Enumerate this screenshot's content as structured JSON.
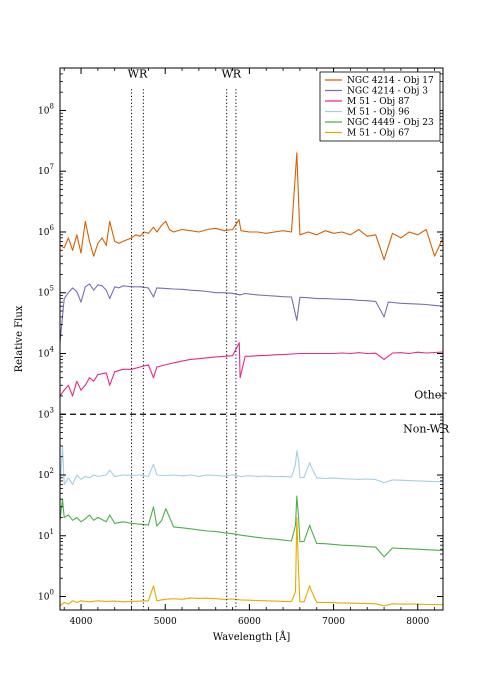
{
  "chart_data": {
    "type": "line",
    "title": "",
    "xlabel": "Wavelength [Å]",
    "ylabel": "Relative Flux",
    "xlim": [
      3750,
      8300
    ],
    "ylim": [
      0.6,
      500000000
    ],
    "yscale": "log",
    "grid": false,
    "legend_position": "top-right",
    "x_ticks": [
      {
        "value": 4000,
        "label": "4000"
      },
      {
        "value": 5000,
        "label": "5000"
      },
      {
        "value": 6000,
        "label": "6000"
      },
      {
        "value": 7000,
        "label": "7000"
      },
      {
        "value": 8000,
        "label": "8000"
      }
    ],
    "y_ticks": [
      {
        "value": 1,
        "label": "10^0",
        "base": "10",
        "exp": "0"
      },
      {
        "value": 10,
        "label": "10^1",
        "base": "10",
        "exp": "1"
      },
      {
        "value": 100,
        "label": "10^2",
        "base": "10",
        "exp": "2"
      },
      {
        "value": 1000,
        "label": "10^3",
        "base": "10",
        "exp": "3"
      },
      {
        "value": 10000,
        "label": "10^4",
        "base": "10",
        "exp": "4"
      },
      {
        "value": 100000,
        "label": "10^5",
        "base": "10",
        "exp": "5"
      },
      {
        "value": 1000000,
        "label": "10^6",
        "base": "10",
        "exp": "6"
      },
      {
        "value": 10000000,
        "label": "10^7",
        "base": "10",
        "exp": "7"
      },
      {
        "value": 100000000,
        "label": "10^8",
        "base": "10",
        "exp": "8"
      }
    ],
    "vertical_lines": [
      4600,
      4740,
      5730,
      5840
    ],
    "horizontal_line": 1000,
    "annotations": [
      {
        "text": "WR",
        "x": 4670,
        "y": 350000000
      },
      {
        "text": "WR",
        "x": 5785,
        "y": 350000000
      },
      {
        "text": "Other",
        "x": 8150,
        "y": 1800
      },
      {
        "text": "Non-WR",
        "x": 8100,
        "y": 500
      }
    ],
    "series": [
      {
        "name": "NGC 4214 - Obj 17",
        "color": "#d95f02",
        "x": [
          3750,
          3800,
          3850,
          3900,
          3950,
          4000,
          4050,
          4100,
          4150,
          4200,
          4250,
          4300,
          4340,
          4400,
          4450,
          4500,
          4550,
          4600,
          4650,
          4700,
          4750,
          4800,
          4861,
          4900,
          4959,
          5007,
          5050,
          5100,
          5200,
          5300,
          5400,
          5500,
          5600,
          5700,
          5800,
          5876,
          5900,
          6000,
          6100,
          6200,
          6300,
          6400,
          6500,
          6563,
          6600,
          6700,
          6800,
          6900,
          7000,
          7100,
          7200,
          7300,
          7400,
          7500,
          7600,
          7700,
          7800,
          7900,
          8000,
          8100,
          8200,
          8300
        ],
        "y": [
          600000,
          550000,
          800000,
          500000,
          900000,
          450000,
          1500000,
          700000,
          400000,
          650000,
          800000,
          600000,
          1500000,
          700000,
          650000,
          700000,
          750000,
          800000,
          900000,
          850000,
          1000000,
          950000,
          1200000,
          1000000,
          1300000,
          1500000,
          1100000,
          1000000,
          1100000,
          1050000,
          1000000,
          1100000,
          1150000,
          1050000,
          1100000,
          1600000,
          1050000,
          1000000,
          1000000,
          950000,
          1000000,
          1050000,
          1000000,
          20000000,
          900000,
          1000000,
          900000,
          1050000,
          950000,
          1000000,
          900000,
          1100000,
          850000,
          900000,
          350000,
          950000,
          800000,
          1000000,
          900000,
          1100000,
          400000,
          800000
        ]
      },
      {
        "name": "NGC 4214 - Obj 3",
        "color": "#7570b3",
        "x": [
          3750,
          3800,
          3850,
          3900,
          3950,
          4000,
          4050,
          4100,
          4150,
          4200,
          4250,
          4300,
          4340,
          4400,
          4450,
          4500,
          4600,
          4700,
          4800,
          4861,
          4900,
          5000,
          5100,
          5200,
          5300,
          5400,
          5500,
          5600,
          5700,
          5800,
          5890,
          5950,
          6000,
          6100,
          6200,
          6300,
          6400,
          6500,
          6563,
          6600,
          6700,
          6800,
          6900,
          7000,
          7100,
          7200,
          7300,
          7400,
          7500,
          7600,
          7650,
          7700,
          7800,
          7900,
          8000,
          8100,
          8200,
          8300
        ],
        "y": [
          15000,
          80000,
          100000,
          120000,
          105000,
          70000,
          125000,
          140000,
          110000,
          135000,
          130000,
          110000,
          80000,
          125000,
          120000,
          130000,
          125000,
          125000,
          120000,
          85000,
          120000,
          118000,
          115000,
          114000,
          110000,
          108000,
          105000,
          100000,
          100000,
          98000,
          92000,
          97000,
          95000,
          92000,
          90000,
          88000,
          86000,
          85000,
          35000,
          84000,
          83000,
          80000,
          80000,
          79000,
          78000,
          77000,
          75000,
          74000,
          72000,
          40000,
          70000,
          69000,
          67000,
          66000,
          65000,
          64000,
          62000,
          60000
        ]
      },
      {
        "name": "M 51 - Obj 87",
        "color": "#e7298a",
        "x": [
          3750,
          3800,
          3850,
          3900,
          3950,
          4000,
          4050,
          4100,
          4150,
          4200,
          4300,
          4340,
          4400,
          4500,
          4600,
          4700,
          4800,
          4861,
          4900,
          5000,
          5100,
          5200,
          5300,
          5400,
          5500,
          5600,
          5700,
          5800,
          5880,
          5890,
          5950,
          6000,
          6100,
          6200,
          6300,
          6400,
          6500,
          6600,
          6700,
          6800,
          6900,
          7000,
          7100,
          7200,
          7300,
          7400,
          7500,
          7600,
          7700,
          7800,
          7900,
          8000,
          8100,
          8200,
          8300
        ],
        "y": [
          2000,
          2500,
          3000,
          2000,
          3500,
          2500,
          3000,
          4000,
          3500,
          4500,
          4800,
          3000,
          5000,
          5500,
          5500,
          6000,
          6500,
          4000,
          6000,
          6500,
          7000,
          7500,
          8000,
          8200,
          8500,
          8800,
          9000,
          9200,
          15000,
          4000,
          9000,
          9000,
          9200,
          9300,
          9500,
          9600,
          9800,
          10000,
          10000,
          10000,
          10000,
          10000,
          10200,
          10000,
          10300,
          10000,
          10100,
          8000,
          10200,
          10300,
          10000,
          10500,
          10200,
          10400,
          10600
        ]
      },
      {
        "name": "M 51 - Obj 96",
        "color": "#a6cee3",
        "x": [
          3750,
          3780,
          3800,
          3850,
          3900,
          3950,
          4000,
          4050,
          4100,
          4150,
          4200,
          4300,
          4340,
          4400,
          4500,
          4600,
          4700,
          4800,
          4861,
          4900,
          5000,
          5100,
          5200,
          5300,
          5400,
          5500,
          5600,
          5700,
          5800,
          5900,
          6000,
          6100,
          6200,
          6300,
          6400,
          6500,
          6548,
          6563,
          6584,
          6600,
          6650,
          6716,
          6731,
          6800,
          6900,
          7000,
          7100,
          7200,
          7300,
          7400,
          7500,
          7600,
          7700,
          7800,
          7900,
          8000,
          8100,
          8200,
          8300
        ],
        "y": [
          60,
          300,
          70,
          90,
          70,
          100,
          85,
          95,
          90,
          100,
          95,
          100,
          120,
          95,
          100,
          98,
          100,
          95,
          150,
          100,
          98,
          100,
          97,
          100,
          95,
          100,
          98,
          96,
          100,
          95,
          97,
          95,
          96,
          94,
          95,
          93,
          150,
          250,
          180,
          90,
          92,
          160,
          140,
          90,
          88,
          89,
          87,
          86,
          85,
          86,
          84,
          75,
          83,
          82,
          81,
          80,
          79,
          78,
          77
        ]
      },
      {
        "name": "NGC 4449 - Obj 23",
        "color": "#4daf4a",
        "x": [
          3750,
          3780,
          3800,
          3850,
          3900,
          3950,
          4000,
          4050,
          4100,
          4150,
          4200,
          4300,
          4340,
          4400,
          4500,
          4600,
          4700,
          4800,
          4861,
          4900,
          4959,
          5007,
          5100,
          5200,
          5300,
          5400,
          5500,
          5600,
          5700,
          5800,
          5900,
          6000,
          6100,
          6200,
          6300,
          6400,
          6500,
          6548,
          6563,
          6584,
          6600,
          6650,
          6716,
          6731,
          6800,
          6900,
          7000,
          7100,
          7200,
          7300,
          7400,
          7500,
          7600,
          7700,
          7800,
          7900,
          8000,
          8100,
          8200,
          8300
        ],
        "y": [
          18,
          40,
          20,
          22,
          18,
          20,
          17,
          19,
          22,
          18,
          20,
          17,
          22,
          16,
          17,
          16,
          15.5,
          15,
          30,
          14.5,
          18,
          28,
          14,
          13.5,
          13,
          12.5,
          12,
          11.8,
          11.2,
          10.8,
          10.2,
          9.8,
          9.4,
          9,
          8.8,
          8.5,
          8.2,
          15,
          45,
          20,
          8,
          8.1,
          15,
          13,
          7.5,
          7.4,
          7.2,
          7,
          6.9,
          6.8,
          6.6,
          6.5,
          4.5,
          6.3,
          6.2,
          6.1,
          6,
          5.9,
          5.8,
          5.7
        ]
      },
      {
        "name": "M 51 - Obj 67",
        "color": "#e6ab02",
        "x": [
          3750,
          3800,
          3850,
          3900,
          3950,
          4000,
          4100,
          4200,
          4300,
          4400,
          4500,
          4600,
          4700,
          4800,
          4861,
          4900,
          5000,
          5100,
          5200,
          5300,
          5400,
          5500,
          5600,
          5700,
          5800,
          5900,
          6000,
          6100,
          6200,
          6300,
          6400,
          6500,
          6548,
          6563,
          6584,
          6600,
          6650,
          6716,
          6731,
          6800,
          6900,
          7000,
          7100,
          7200,
          7300,
          7400,
          7500,
          7600,
          7700,
          7800,
          7900,
          8000,
          8100,
          8200,
          8300
        ],
        "y": [
          0.7,
          0.8,
          0.75,
          0.85,
          0.8,
          0.85,
          0.82,
          0.85,
          0.83,
          0.84,
          0.82,
          0.83,
          0.84,
          0.85,
          1.5,
          0.85,
          0.9,
          0.92,
          0.9,
          0.95,
          0.93,
          0.94,
          0.92,
          0.9,
          0.91,
          0.88,
          0.87,
          0.86,
          0.85,
          0.84,
          0.83,
          0.83,
          1.2,
          20,
          2.5,
          0.82,
          0.82,
          1.5,
          1.3,
          0.8,
          0.8,
          0.79,
          0.78,
          0.78,
          0.77,
          0.77,
          0.76,
          0.7,
          0.76,
          0.75,
          0.75,
          0.75,
          0.74,
          0.74,
          0.73
        ]
      }
    ]
  }
}
